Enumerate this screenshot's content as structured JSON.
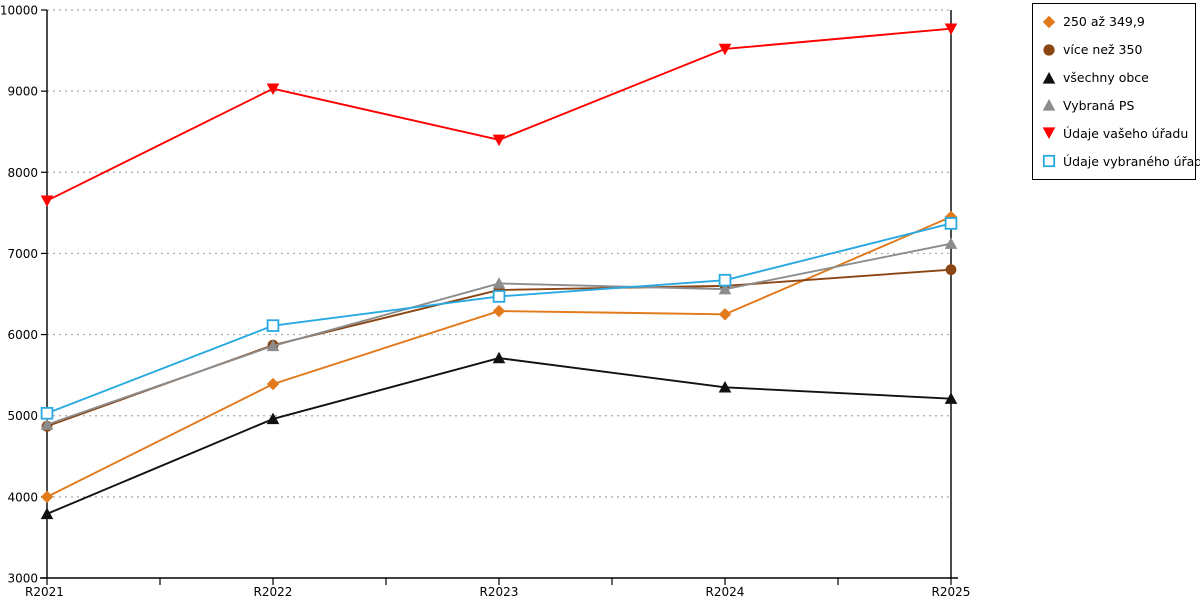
{
  "chart_data": {
    "type": "line",
    "title": "",
    "xlabel": "",
    "ylabel": "",
    "categories": [
      "R2021",
      "R2022",
      "R2023",
      "R2024",
      "R2025"
    ],
    "series": [
      {
        "name": "250 až 349,9",
        "marker": "diamond",
        "color": "#E2791B",
        "values": [
          4000,
          5390,
          6290,
          6250,
          7450
        ]
      },
      {
        "name": "více než 350",
        "marker": "circle",
        "color": "#8B4513",
        "values": [
          4870,
          5870,
          6550,
          6600,
          6800
        ]
      },
      {
        "name": "všechny obce",
        "marker": "triangle-up",
        "color": "#111111",
        "values": [
          3790,
          4960,
          5710,
          5350,
          5210
        ]
      },
      {
        "name": "Vybraná PS",
        "marker": "triangle-up",
        "color": "#8C8C8C",
        "values": [
          4890,
          5860,
          6630,
          6560,
          7120
        ]
      },
      {
        "name": "Údaje vašeho úřadu",
        "marker": "triangle-down",
        "color": "#FF0000",
        "values": [
          7650,
          9030,
          8400,
          9520,
          9770
        ]
      },
      {
        "name": "Údaje vybraného úřadu",
        "marker": "square-open",
        "color": "#29A9E1",
        "values": [
          5030,
          6110,
          6470,
          6670,
          7370
        ]
      }
    ],
    "ylim": [
      3000,
      10000
    ],
    "yticks": [
      3000,
      4000,
      5000,
      6000,
      7000,
      8000,
      9000,
      10000
    ],
    "grid": "horizontal-dotted",
    "gridline_color": "#aaaaaa",
    "axis_color": "#000000",
    "legend_position": "top-right"
  }
}
